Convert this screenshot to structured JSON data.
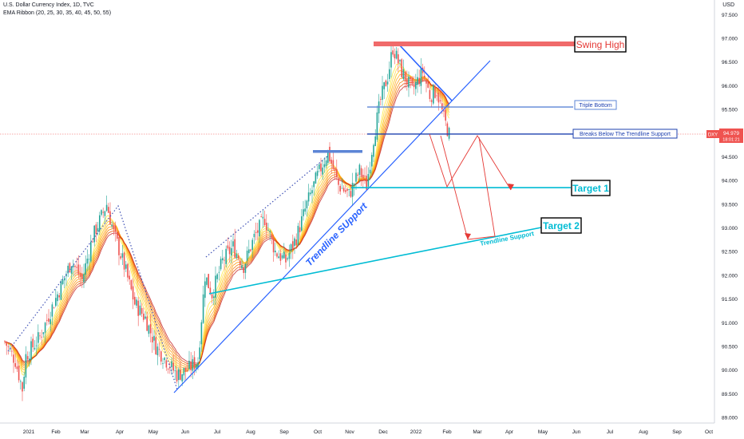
{
  "header": {
    "symbol_line": "U.S. Dollar Currency Index, 1D, TVC",
    "indicator_line": "EMA Ribbon (20, 25, 30, 35, 40, 45, 50, 55)",
    "currency": "USD"
  },
  "price_tag": {
    "symbol": "DXY",
    "price": "94.979",
    "countdown": "18:01:21"
  },
  "colors": {
    "bull": "#26a69a",
    "bear": "#ef5350",
    "trendline": "#2962ff",
    "swing_high": "#f06a6a",
    "target": "#00bcd4",
    "projection": "#e53935"
  },
  "chart_data": {
    "type": "candlestick",
    "ylim": [
      88.75,
      97.6
    ],
    "y_ticks": [
      "97.500",
      "97.000",
      "96.500",
      "96.000",
      "95.500",
      "95.000",
      "94.500",
      "94.000",
      "93.500",
      "93.000",
      "92.500",
      "92.000",
      "91.500",
      "91.000",
      "90.500",
      "90.000",
      "89.500",
      "89.000"
    ],
    "x_ticks": [
      "2021",
      "Feb",
      "Mar",
      "Apr",
      "May",
      "Jun",
      "Jul",
      "Aug",
      "Sep",
      "Oct",
      "Nov",
      "Dec",
      "2022",
      "Feb",
      "Mar",
      "Apr",
      "May",
      "Jun",
      "Jul",
      "Aug",
      "Sep",
      "Oct"
    ],
    "current_price": 94.979,
    "price_path": [
      [
        0,
        90.6
      ],
      [
        6,
        90.2
      ],
      [
        10,
        89.6
      ],
      [
        12,
        90.3
      ],
      [
        20,
        90.7
      ],
      [
        30,
        91.6
      ],
      [
        38,
        92.3
      ],
      [
        44,
        91.9
      ],
      [
        50,
        92.8
      ],
      [
        58,
        93.5
      ],
      [
        62,
        92.9
      ],
      [
        68,
        92.2
      ],
      [
        74,
        91.4
      ],
      [
        80,
        91.1
      ],
      [
        86,
        90.5
      ],
      [
        92,
        90.2
      ],
      [
        98,
        89.9
      ],
      [
        104,
        90.0
      ],
      [
        110,
        90.2
      ],
      [
        114,
        92.0
      ],
      [
        118,
        91.6
      ],
      [
        124,
        92.3
      ],
      [
        130,
        92.6
      ],
      [
        136,
        92.2
      ],
      [
        142,
        92.8
      ],
      [
        148,
        93.2
      ],
      [
        154,
        92.5
      ],
      [
        160,
        92.3
      ],
      [
        166,
        92.8
      ],
      [
        172,
        93.5
      ],
      [
        178,
        94.1
      ],
      [
        184,
        94.6
      ],
      [
        190,
        93.9
      ],
      [
        196,
        93.7
      ],
      [
        202,
        94.2
      ],
      [
        206,
        93.9
      ],
      [
        210,
        94.9
      ],
      [
        214,
        95.7
      ],
      [
        218,
        96.2
      ],
      [
        221,
        96.8
      ],
      [
        226,
        96.3
      ],
      [
        232,
        95.9
      ],
      [
        238,
        96.3
      ],
      [
        242,
        95.8
      ],
      [
        246,
        95.9
      ],
      [
        250,
        95.3
      ],
      [
        253,
        94.979
      ]
    ],
    "annotations": [
      {
        "label": "Swing High",
        "value": 96.95
      },
      {
        "label": "Triple Bottom",
        "value": 95.55
      },
      {
        "label": "Breaks Below The Trendline Support",
        "value": 94.98
      },
      {
        "label": "Target 1",
        "value": 93.85
      },
      {
        "label": "Target 2",
        "value": 92.95
      },
      {
        "label": "Trendline SUpport",
        "value": null
      },
      {
        "label": "Trendline Support",
        "value": null
      }
    ]
  }
}
